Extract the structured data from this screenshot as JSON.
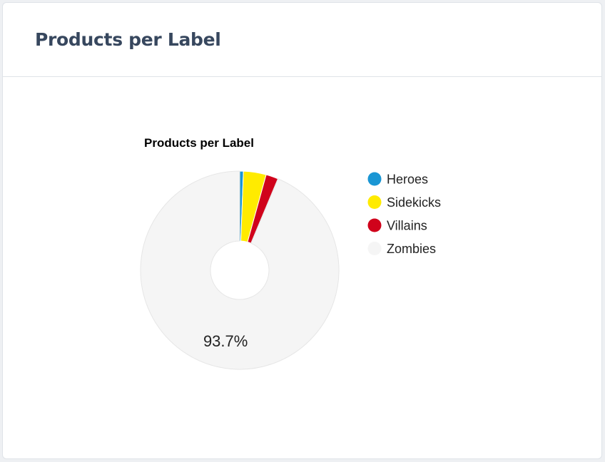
{
  "card": {
    "title": "Products per Label"
  },
  "chart_data": {
    "type": "pie",
    "title": "Products per Label",
    "donut": true,
    "legend_position": "right",
    "slices": [
      {
        "label": "Heroes",
        "value": 0.6,
        "color": "#1a96d4"
      },
      {
        "label": "Sidekicks",
        "value": 3.7,
        "color": "#ffeb00"
      },
      {
        "label": "Villains",
        "value": 2.0,
        "color": "#d0021b"
      },
      {
        "label": "Zombies",
        "value": 93.7,
        "color": "#f5f5f5"
      }
    ],
    "data_labels": [
      {
        "slice": "Zombies",
        "text": "93.7%"
      }
    ]
  }
}
